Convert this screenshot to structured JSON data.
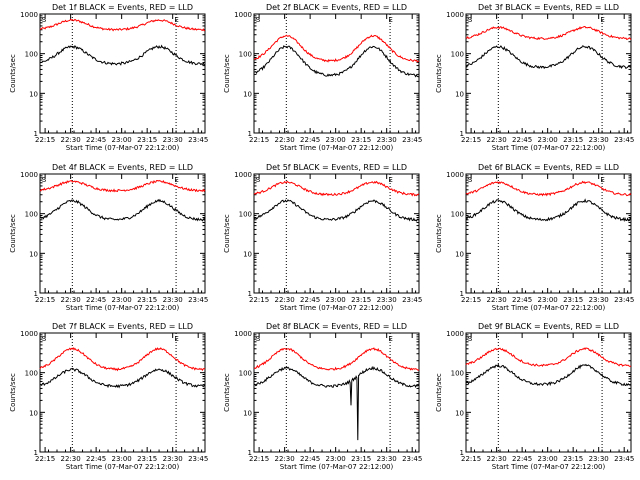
{
  "colors": {
    "events": "#000000",
    "lld": "#ff0000",
    "axes": "#000000",
    "background": "#ffffff"
  },
  "chart_data": {
    "type": "line",
    "title_suffix": "BLACK = Events, RED = LLD",
    "xlabel": "Start Time (07-Mar-07 22:12:00)",
    "ylabel": "Counts/sec",
    "yscale": "log",
    "ylim": [
      1,
      1000
    ],
    "y_ticks": [
      "1",
      "10",
      "100",
      "1000"
    ],
    "xlim_minutes_after_start": [
      0,
      97
    ],
    "x_ticks": [
      "22:15",
      "22:30",
      "22:45",
      "23:00",
      "23:15",
      "23:30",
      "23:45"
    ],
    "grid": false,
    "markers": {
      "vlines": [
        "22:31",
        "23:32"
      ],
      "S_label": "S",
      "E_label": "E",
      "S_at": "22:13",
      "E_at": "23:31"
    },
    "panels": [
      {
        "title": "Det 1f",
        "events": {
          "base": 55,
          "peak": 150
        },
        "lld": {
          "base": 400,
          "peak": 700
        }
      },
      {
        "title": "Det 2f",
        "events": {
          "base": 28,
          "peak": 150
        },
        "lld": {
          "base": 65,
          "peak": 280
        }
      },
      {
        "title": "Det 3f",
        "events": {
          "base": 45,
          "peak": 150
        },
        "lld": {
          "base": 240,
          "peak": 460
        }
      },
      {
        "title": "Det 4f",
        "events": {
          "base": 70,
          "peak": 210
        },
        "lld": {
          "base": 380,
          "peak": 650
        }
      },
      {
        "title": "Det 5f",
        "events": {
          "base": 70,
          "peak": 210
        },
        "lld": {
          "base": 300,
          "peak": 620
        }
      },
      {
        "title": "Det 6f",
        "events": {
          "base": 70,
          "peak": 210
        },
        "lld": {
          "base": 300,
          "peak": 620
        }
      },
      {
        "title": "Det 7f",
        "events": {
          "base": 45,
          "peak": 120
        },
        "lld": {
          "base": 120,
          "peak": 400
        }
      },
      {
        "title": "Det 8f",
        "events": {
          "base": 45,
          "peak": 130
        },
        "lld": {
          "base": 120,
          "peak": 400
        },
        "dips": [
          {
            "time": "23:09",
            "value": 15
          },
          {
            "time": "23:13",
            "value": 2
          }
        ]
      },
      {
        "title": "Det 9f",
        "events": {
          "base": 50,
          "peak": 150
        },
        "lld": {
          "base": 150,
          "peak": 400
        }
      }
    ]
  }
}
